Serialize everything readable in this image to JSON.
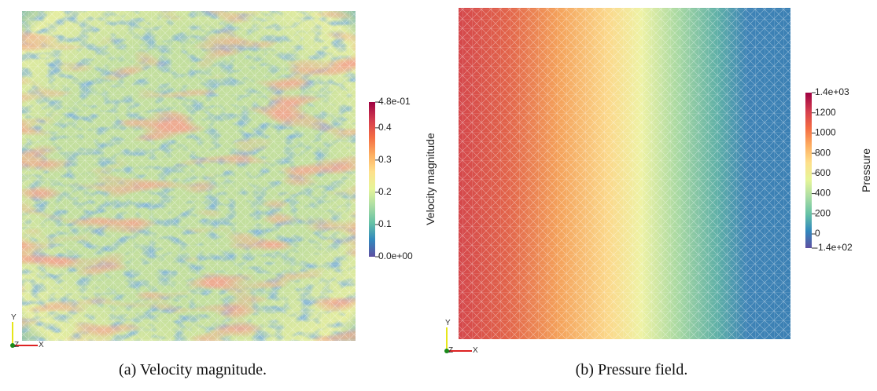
{
  "panels": [
    {
      "caption": "(a) Velocity magnitude.",
      "axes": {
        "y": "Y",
        "z": "Z",
        "x": "X"
      },
      "colorbar": {
        "title": "Velocity magnitude",
        "range": [
          0,
          0.48
        ],
        "ticks": [
          {
            "value": 0.48,
            "label": "4.8e-01"
          },
          0.4,
          0.3,
          0.2,
          0.1,
          {
            "value": 0,
            "label": "0.0e+00"
          }
        ]
      }
    },
    {
      "caption": "(b) Pressure field.",
      "axes": {
        "y": "Y",
        "z": "Z",
        "x": "X"
      },
      "colorbar": {
        "title": "Pressure",
        "range": [
          -140,
          1400
        ],
        "ticks": [
          {
            "value": 1400,
            "label": "1.4e+03"
          },
          1200,
          1000,
          800,
          600,
          400,
          200,
          0,
          {
            "value": -140,
            "label": "-1.4e+02"
          }
        ]
      }
    }
  ]
}
